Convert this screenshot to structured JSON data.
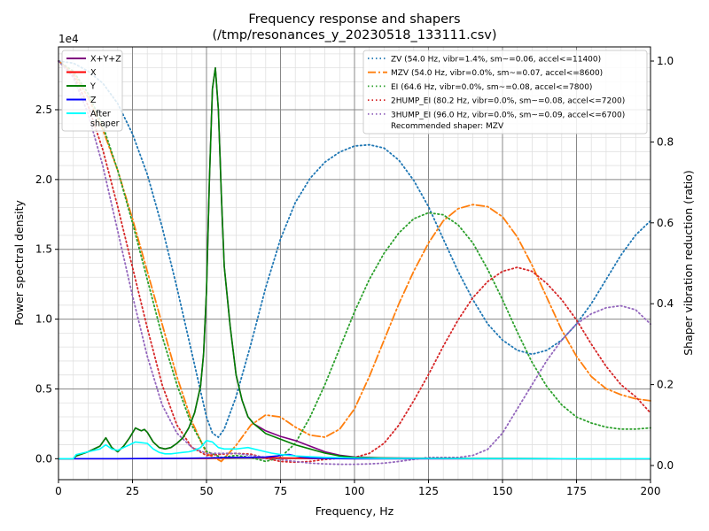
{
  "chart_data": {
    "type": "line",
    "title": "Frequency response and shapers",
    "subtitle": "(/tmp/resonances_y_20230518_133111.csv)",
    "xlabel": "Frequency, Hz",
    "ylabel": "Power spectral density",
    "y2label": "Shaper vibration reduction (ratio)",
    "y_scale_label": "1e4",
    "xlim": [
      0,
      200
    ],
    "ylim": [
      -1500,
      29500
    ],
    "y2lim": [
      -0.035,
      1.035
    ],
    "x_ticks": [
      0,
      25,
      50,
      75,
      100,
      125,
      150,
      175,
      200
    ],
    "x_tick_labels": [
      "0",
      "25",
      "50",
      "75",
      "100",
      "125",
      "150",
      "175",
      "200"
    ],
    "y_ticks": [
      0,
      5000,
      10000,
      15000,
      20000,
      25000
    ],
    "y_tick_labels": [
      "0.0",
      "0.5",
      "1.0",
      "1.5",
      "2.0",
      "2.5"
    ],
    "y2_ticks": [
      0,
      0.2,
      0.4,
      0.6,
      0.8,
      1.0
    ],
    "y2_tick_labels": [
      "0.0",
      "0.2",
      "0.4",
      "0.6",
      "0.8",
      "1.0"
    ],
    "grid": true,
    "psd_legend_position": "upper-left",
    "shaper_legend_position": "upper-right",
    "recommended_note": "Recommended shaper: MZV",
    "psd_series": [
      {
        "name": "X+Y+Z",
        "color": "#800080",
        "x": [
          0,
          5,
          6,
          10,
          14,
          16,
          18,
          20,
          22,
          24,
          26,
          28,
          29,
          30,
          32,
          34,
          36,
          38,
          40,
          42,
          44,
          46,
          48,
          49,
          50,
          51,
          52,
          53,
          54,
          55,
          56,
          58,
          60,
          62,
          64,
          66,
          70,
          75,
          80,
          85,
          90,
          95,
          100,
          110,
          120,
          140,
          160,
          180,
          200
        ],
        "values": [
          0,
          0,
          200,
          500,
          900,
          1500,
          800,
          500,
          900,
          1500,
          2200,
          2000,
          2100,
          1900,
          1200,
          800,
          700,
          800,
          1100,
          1500,
          2200,
          3300,
          5200,
          7500,
          12000,
          20000,
          26500,
          28000,
          25000,
          19000,
          13800,
          9500,
          6000,
          4200,
          3000,
          2500,
          2000,
          1600,
          1300,
          900,
          500,
          250,
          120,
          60,
          40,
          20,
          10,
          5,
          3
        ]
      },
      {
        "name": "X",
        "color": "#ff0000",
        "x": [
          0,
          6,
          20,
          40,
          50,
          55,
          60,
          65,
          70,
          75,
          80,
          85,
          90,
          95,
          100,
          120,
          150,
          200
        ],
        "values": [
          0,
          0,
          0,
          20,
          30,
          50,
          80,
          100,
          80,
          60,
          40,
          30,
          20,
          10,
          5,
          2,
          1,
          0
        ]
      },
      {
        "name": "Y",
        "color": "#008000",
        "x": [
          0,
          5,
          6,
          10,
          14,
          16,
          18,
          20,
          22,
          24,
          26,
          28,
          29,
          30,
          32,
          34,
          36,
          38,
          40,
          42,
          44,
          46,
          48,
          49,
          50,
          51,
          52,
          53,
          54,
          55,
          56,
          58,
          60,
          62,
          64,
          66,
          70,
          75,
          80,
          85,
          90,
          95,
          100,
          110,
          120,
          140,
          160,
          180,
          200
        ],
        "values": [
          0,
          0,
          200,
          500,
          900,
          1500,
          800,
          500,
          900,
          1500,
          2200,
          2000,
          2100,
          1900,
          1200,
          800,
          700,
          800,
          1100,
          1500,
          2200,
          3300,
          5200,
          7500,
          12000,
          20000,
          26500,
          28000,
          25000,
          19000,
          13800,
          9500,
          6000,
          4200,
          3000,
          2500,
          1800,
          1400,
          1000,
          700,
          400,
          200,
          100,
          50,
          30,
          15,
          8,
          4,
          2
        ]
      },
      {
        "name": "Z",
        "color": "#0000ff",
        "x": [
          0,
          6,
          20,
          40,
          50,
          55,
          60,
          65,
          70,
          74,
          76,
          78,
          80,
          82,
          85,
          90,
          95,
          100,
          120,
          150,
          200
        ],
        "values": [
          0,
          0,
          0,
          30,
          50,
          80,
          100,
          100,
          120,
          200,
          280,
          300,
          200,
          120,
          60,
          20,
          10,
          5,
          2,
          1,
          0
        ]
      },
      {
        "name": "After\nshaper",
        "color": "#00ffff",
        "x": [
          0,
          5,
          6,
          10,
          14,
          16,
          18,
          20,
          22,
          24,
          26,
          28,
          30,
          32,
          34,
          36,
          38,
          40,
          42,
          44,
          46,
          48,
          50,
          52,
          54,
          56,
          58,
          60,
          62,
          64,
          66,
          68,
          70,
          72,
          75,
          80,
          85,
          90,
          95,
          100,
          110,
          120,
          140,
          160,
          180,
          200
        ],
        "values": [
          0,
          0,
          300,
          500,
          700,
          1000,
          700,
          600,
          800,
          1000,
          1200,
          1150,
          1100,
          700,
          450,
          350,
          350,
          400,
          450,
          500,
          600,
          800,
          1300,
          1200,
          800,
          700,
          700,
          700,
          750,
          800,
          700,
          600,
          500,
          400,
          300,
          200,
          150,
          100,
          80,
          50,
          30,
          20,
          10,
          5,
          3,
          1
        ]
      }
    ],
    "shaper_series": [
      {
        "name": "ZV (54.0 Hz, vibr=1.4%, sm~=0.06, accel<=11400)",
        "color": "#1f77b4",
        "dash": "dotted",
        "x": [
          0,
          5,
          10,
          15,
          20,
          25,
          30,
          35,
          40,
          45,
          50,
          52,
          54,
          56,
          60,
          65,
          70,
          75,
          80,
          85,
          90,
          95,
          100,
          105,
          110,
          115,
          120,
          125,
          130,
          135,
          140,
          145,
          150,
          155,
          160,
          165,
          170,
          175,
          180,
          185,
          190,
          195,
          200
        ],
        "values": [
          1.0,
          0.995,
          0.975,
          0.945,
          0.895,
          0.82,
          0.72,
          0.59,
          0.44,
          0.28,
          0.12,
          0.08,
          0.07,
          0.09,
          0.17,
          0.3,
          0.44,
          0.56,
          0.65,
          0.71,
          0.75,
          0.775,
          0.79,
          0.793,
          0.785,
          0.755,
          0.705,
          0.64,
          0.56,
          0.48,
          0.41,
          0.35,
          0.31,
          0.285,
          0.275,
          0.285,
          0.31,
          0.35,
          0.4,
          0.46,
          0.52,
          0.57,
          0.605
        ]
      },
      {
        "name": "MZV (54.0 Hz, vibr=0.0%, sm~=0.07, accel<=8600)",
        "color": "#ff7f0e",
        "dash": "dashdot",
        "x": [
          0,
          5,
          10,
          15,
          20,
          25,
          30,
          35,
          40,
          45,
          50,
          55,
          60,
          65,
          70,
          75,
          80,
          85,
          90,
          95,
          100,
          105,
          110,
          115,
          120,
          125,
          130,
          135,
          140,
          145,
          150,
          155,
          160,
          165,
          170,
          175,
          180,
          185,
          190,
          195,
          200
        ],
        "values": [
          1.0,
          0.97,
          0.91,
          0.83,
          0.73,
          0.61,
          0.48,
          0.35,
          0.22,
          0.11,
          0.03,
          0.01,
          0.05,
          0.1,
          0.125,
          0.12,
          0.095,
          0.075,
          0.07,
          0.09,
          0.14,
          0.22,
          0.31,
          0.4,
          0.48,
          0.55,
          0.605,
          0.635,
          0.645,
          0.64,
          0.615,
          0.565,
          0.495,
          0.415,
          0.335,
          0.27,
          0.22,
          0.19,
          0.175,
          0.165,
          0.16
        ]
      },
      {
        "name": "EI (64.6 Hz, vibr=0.0%, sm~=0.08, accel<=7800)",
        "color": "#2ca02c",
        "dash": "dotted",
        "x": [
          0,
          5,
          10,
          15,
          20,
          25,
          30,
          35,
          40,
          45,
          50,
          55,
          60,
          65,
          70,
          75,
          80,
          85,
          90,
          95,
          100,
          105,
          110,
          115,
          120,
          125,
          130,
          135,
          140,
          145,
          150,
          155,
          160,
          165,
          170,
          175,
          180,
          185,
          190,
          195,
          200
        ],
        "values": [
          1.0,
          0.975,
          0.92,
          0.84,
          0.73,
          0.6,
          0.46,
          0.32,
          0.2,
          0.1,
          0.035,
          0.02,
          0.025,
          0.02,
          0.01,
          0.02,
          0.055,
          0.12,
          0.2,
          0.29,
          0.38,
          0.46,
          0.525,
          0.575,
          0.61,
          0.625,
          0.62,
          0.595,
          0.55,
          0.485,
          0.41,
          0.33,
          0.255,
          0.195,
          0.15,
          0.12,
          0.105,
          0.095,
          0.09,
          0.09,
          0.093
        ]
      },
      {
        "name": "2HUMP_EI (80.2 Hz, vibr=0.0%, sm~=0.08, accel<=7200)",
        "color": "#d62728",
        "dash": "dotted",
        "x": [
          0,
          5,
          10,
          15,
          20,
          25,
          30,
          35,
          40,
          45,
          50,
          55,
          60,
          65,
          70,
          75,
          80,
          85,
          90,
          95,
          100,
          105,
          110,
          115,
          120,
          125,
          130,
          135,
          140,
          145,
          150,
          155,
          160,
          165,
          170,
          175,
          180,
          185,
          190,
          195,
          200
        ],
        "values": [
          1.0,
          0.965,
          0.89,
          0.78,
          0.64,
          0.49,
          0.34,
          0.2,
          0.1,
          0.045,
          0.025,
          0.028,
          0.03,
          0.028,
          0.018,
          0.01,
          0.008,
          0.01,
          0.015,
          0.018,
          0.02,
          0.03,
          0.055,
          0.1,
          0.16,
          0.225,
          0.295,
          0.36,
          0.415,
          0.455,
          0.48,
          0.49,
          0.48,
          0.45,
          0.41,
          0.36,
          0.3,
          0.245,
          0.2,
          0.17,
          0.13
        ]
      },
      {
        "name": "3HUMP_EI (96.0 Hz, vibr=0.0%, sm~=0.09, accel<=6700)",
        "color": "#9467bd",
        "dash": "dotted",
        "x": [
          0,
          5,
          10,
          15,
          20,
          25,
          30,
          35,
          40,
          45,
          50,
          55,
          60,
          65,
          70,
          75,
          80,
          85,
          90,
          95,
          100,
          105,
          110,
          115,
          120,
          125,
          130,
          135,
          140,
          145,
          150,
          155,
          160,
          165,
          170,
          175,
          180,
          185,
          190,
          195,
          200
        ],
        "values": [
          1.0,
          0.96,
          0.87,
          0.74,
          0.58,
          0.42,
          0.27,
          0.15,
          0.08,
          0.045,
          0.03,
          0.03,
          0.03,
          0.025,
          0.02,
          0.015,
          0.01,
          0.006,
          0.004,
          0.003,
          0.003,
          0.004,
          0.006,
          0.01,
          0.015,
          0.02,
          0.02,
          0.02,
          0.025,
          0.04,
          0.08,
          0.14,
          0.2,
          0.26,
          0.31,
          0.35,
          0.375,
          0.39,
          0.395,
          0.385,
          0.35
        ]
      }
    ]
  }
}
